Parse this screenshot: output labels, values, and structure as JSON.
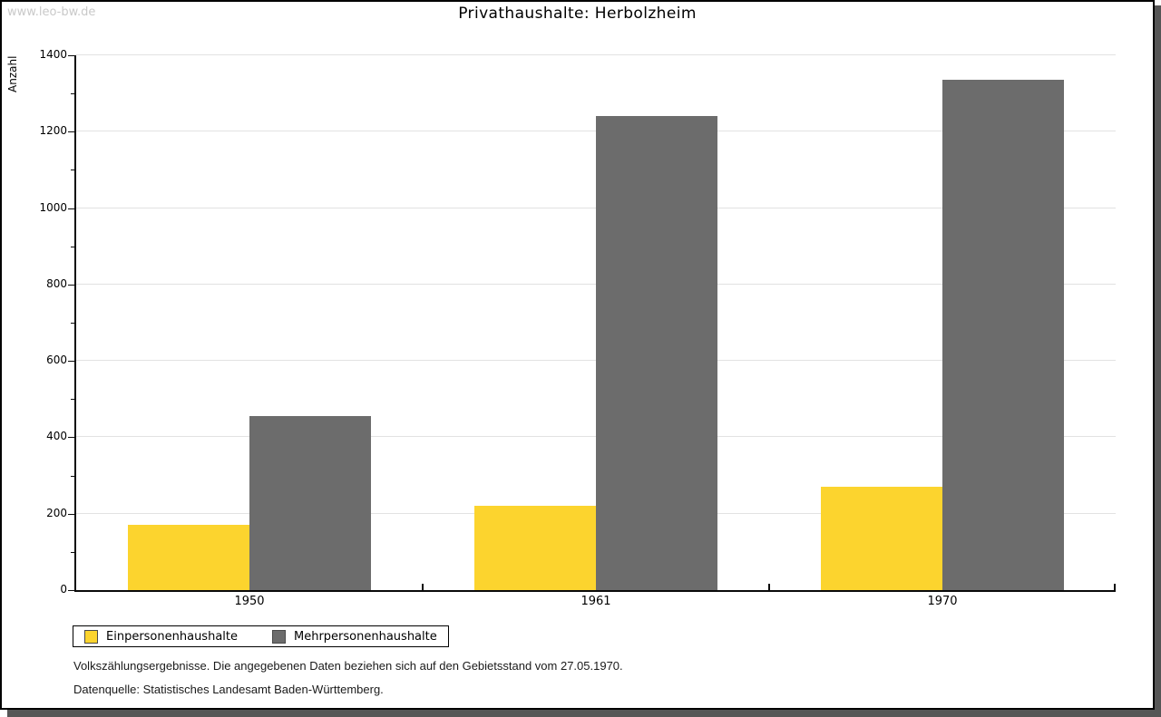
{
  "watermark": "www.leo-bw.de",
  "footnotes": [
    "Volkszählungsergebnisse. Die angegebenen Daten beziehen sich auf den Gebietsstand vom 27.05.1970.",
    "Datenquelle: Statistisches Landesamt Baden-Württemberg."
  ],
  "chart_data": {
    "type": "bar",
    "title": "Privathaushalte: Herbolzheim",
    "xlabel": "",
    "ylabel": "Anzahl",
    "categories": [
      "1950",
      "1961",
      "1970"
    ],
    "series": [
      {
        "name": "Einpersonenhaushalte",
        "color": "#FCD42E",
        "values": [
          170,
          220,
          270
        ]
      },
      {
        "name": "Mehrpersonenhaushalte",
        "color": "#6C6C6C",
        "values": [
          455,
          1240,
          1335
        ]
      }
    ],
    "ylim": [
      0,
      1400
    ],
    "ytick_major": 200,
    "ytick_minor": 100,
    "grid": true,
    "legend_position": "bottom-left",
    "colors": {
      "grid": "#e2e2e2",
      "axis": "#0a0a0a",
      "shadow": "#565656",
      "watermark": "#c9c9c9"
    }
  }
}
